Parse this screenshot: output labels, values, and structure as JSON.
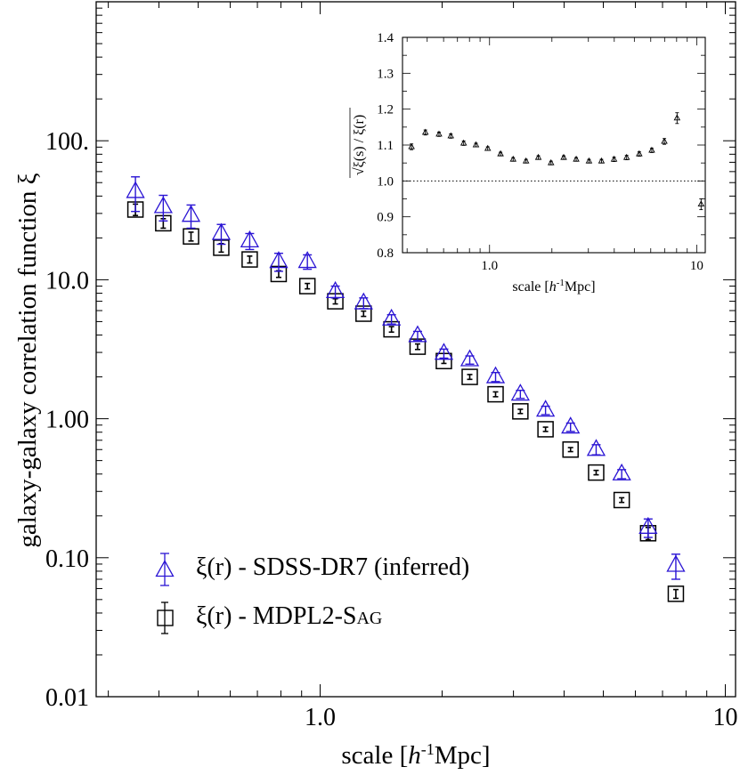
{
  "colors": {
    "sdss": "#2a14d4",
    "mdpl2": "#000000",
    "axis": "#000000"
  },
  "chart_data": [
    {
      "type": "scatter",
      "scale": "log-log",
      "xlabel_main": "scale [",
      "xlabel_italic": "h",
      "xlabel_sup": "-1",
      "xlabel_tail": "Mpc]",
      "ylabel": "galaxy-galaxy correlation function ξ",
      "xlim": [
        0.28,
        10.6
      ],
      "ylim": [
        0.01,
        1000
      ],
      "x_ticklabels": [
        {
          "v": 1.0,
          "label": "1.0"
        },
        {
          "v": 10,
          "label": "10"
        }
      ],
      "y_ticklabels": [
        {
          "v": 0.01,
          "label": "0.01"
        },
        {
          "v": 0.1,
          "label": "0.10"
        },
        {
          "v": 1.0,
          "label": "1.00"
        },
        {
          "v": 10,
          "label": "10.0"
        },
        {
          "v": 100,
          "label": "100."
        }
      ],
      "legend": [
        {
          "marker": "triangle",
          "text": "ξ(r) - SDSS-DR7 (inferred)"
        },
        {
          "marker": "square",
          "text_main": "ξ(r) - MDPL2-S",
          "text_small": "AG"
        }
      ],
      "legend_placement": "bottom-left",
      "series": [
        {
          "name": "ξ(r) - SDSS-DR7 (inferred)",
          "marker": "triangle",
          "x": [
            0.35,
            0.41,
            0.48,
            0.57,
            0.67,
            0.79,
            0.93,
            1.09,
            1.28,
            1.5,
            1.74,
            2.02,
            2.34,
            2.71,
            3.12,
            3.6,
            4.15,
            4.8,
            5.55,
            6.45,
            7.55
          ],
          "y": [
            43,
            33.5,
            29,
            21.5,
            19,
            13.5,
            13.5,
            8.2,
            6.8,
            5.2,
            3.95,
            2.95,
            2.65,
            2.0,
            1.5,
            1.15,
            0.87,
            0.6,
            0.4,
            0.165,
            0.088
          ],
          "err": [
            12,
            7,
            5.5,
            3.5,
            2.5,
            2.0,
            1.6,
            0.8,
            0.6,
            0.4,
            0.3,
            0.22,
            0.18,
            0.15,
            0.1,
            0.08,
            0.06,
            0.05,
            0.03,
            0.025,
            0.018
          ]
        },
        {
          "name": "ξ(r) - MDPL2-SAG",
          "marker": "square",
          "x": [
            0.35,
            0.41,
            0.48,
            0.57,
            0.67,
            0.79,
            0.93,
            1.09,
            1.28,
            1.5,
            1.74,
            2.02,
            2.34,
            2.71,
            3.12,
            3.6,
            4.15,
            4.8,
            5.55,
            6.45,
            7.55
          ],
          "y": [
            32,
            25.5,
            20.5,
            17,
            14,
            11,
            9,
            7,
            5.7,
            4.4,
            3.3,
            2.6,
            2.0,
            1.5,
            1.13,
            0.84,
            0.6,
            0.41,
            0.26,
            0.15,
            0.055
          ],
          "err": [
            3,
            2,
            1.5,
            1.2,
            0.8,
            0.6,
            0.4,
            0.3,
            0.25,
            0.2,
            0.15,
            0.1,
            0.08,
            0.06,
            0.04,
            0.03,
            0.02,
            0.015,
            0.01,
            0.015,
            0.004
          ]
        }
      ]
    },
    {
      "type": "scatter",
      "scale": "log-x",
      "xlabel_main": "scale [",
      "xlabel_italic": "h",
      "xlabel_sup": "-1",
      "xlabel_tail": "Mpc]",
      "ylabel": "√ξ(s) / ξ(r)",
      "xlim": [
        0.38,
        11
      ],
      "ylim": [
        0.8,
        1.4
      ],
      "reference_line": 1.0,
      "x_ticklabels": [
        {
          "v": 1.0,
          "label": "1.0"
        },
        {
          "v": 10,
          "label": "10"
        }
      ],
      "y_ticklabels": [
        {
          "v": 0.8,
          "label": "0.8"
        },
        {
          "v": 0.9,
          "label": "0.9"
        },
        {
          "v": 1.0,
          "label": "1.0"
        },
        {
          "v": 1.1,
          "label": "1.1"
        },
        {
          "v": 1.2,
          "label": "1.2"
        },
        {
          "v": 1.3,
          "label": "1.3"
        },
        {
          "v": 1.4,
          "label": "1.4"
        }
      ],
      "series": [
        {
          "marker": "triangle",
          "x": [
            0.42,
            0.49,
            0.57,
            0.65,
            0.75,
            0.86,
            0.98,
            1.13,
            1.3,
            1.5,
            1.72,
            1.98,
            2.28,
            2.62,
            3.02,
            3.47,
            3.99,
            4.59,
            5.28,
            6.07,
            6.98,
            8.04,
            10.5
          ],
          "y": [
            1.095,
            1.135,
            1.13,
            1.125,
            1.105,
            1.1,
            1.09,
            1.075,
            1.06,
            1.055,
            1.065,
            1.05,
            1.065,
            1.06,
            1.055,
            1.055,
            1.06,
            1.065,
            1.075,
            1.085,
            1.11,
            1.175,
            0.935
          ],
          "err": [
            0.008,
            0.007,
            0.006,
            0.006,
            0.006,
            0.005,
            0.005,
            0.005,
            0.005,
            0.005,
            0.005,
            0.005,
            0.005,
            0.005,
            0.005,
            0.005,
            0.006,
            0.006,
            0.006,
            0.006,
            0.008,
            0.015,
            0.015
          ]
        }
      ]
    }
  ]
}
